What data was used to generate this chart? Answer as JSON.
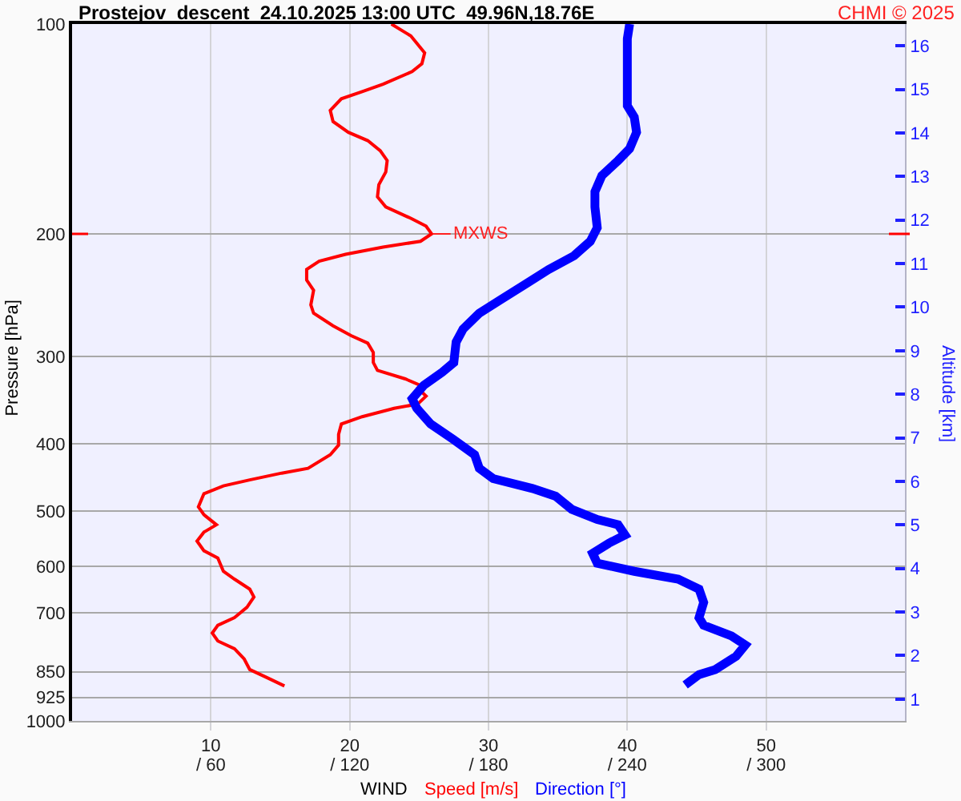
{
  "chart_data": {
    "type": "line",
    "title": "Prostejov  descent  24.10.2025 13:00 UTC  49.96N,18.76E",
    "xlabel": "WIND",
    "ylabel": "Pressure [hPa]",
    "y2label": "Altitude [km]",
    "annotations": [
      "CHMI © 2025",
      {
        "text": "MXWS",
        "x": 26,
        "y": 200
      }
    ],
    "series": [
      {
        "name": "Speed [m/s]",
        "color": "#ff0000",
        "x": [
          23.0,
          24.4,
          25.4,
          25.2,
          24.5,
          22.4,
          20.9,
          19.4,
          18.6,
          18.8,
          19.9,
          21.3,
          22.2,
          22.7,
          22.6,
          22.1,
          22.0,
          22.6,
          24.4,
          25.5,
          25.9,
          25.1,
          22.4,
          19.7,
          17.8,
          16.9,
          16.9,
          17.4,
          17.2,
          17.4,
          18.8,
          20.1,
          21.3,
          21.7,
          21.7,
          22.0,
          24.0,
          25.1,
          24.9,
          25.5,
          24.9,
          23.2,
          20.9,
          19.4,
          19.2,
          19.2,
          18.6,
          17.0,
          15.1,
          12.8,
          10.9,
          9.5,
          9.1,
          9.5,
          10.4,
          9.5,
          9.0,
          9.5,
          10.5,
          10.9,
          11.7,
          12.8,
          13.1,
          12.6,
          11.7,
          10.5,
          10.1,
          10.5,
          11.7,
          12.4,
          12.8,
          14.0,
          15.3
        ],
        "values": [
          100,
          104,
          110,
          114,
          117,
          122,
          125,
          128,
          133,
          138,
          143,
          147,
          152,
          157,
          163,
          170,
          177,
          183,
          190,
          195,
          200,
          205,
          209,
          214,
          219,
          225,
          233,
          241,
          253,
          260,
          271,
          280,
          287,
          296,
          306,
          314,
          323,
          330,
          333,
          342,
          351,
          356,
          366,
          375,
          388,
          402,
          415,
          434,
          441,
          451,
          460,
          472,
          493,
          506,
          523,
          536,
          552,
          570,
          584,
          610,
          626,
          647,
          664,
          687,
          711,
          729,
          748,
          768,
          788,
          815,
          844,
          866,
          891
        ]
      },
      {
        "name": "Direction [°]",
        "color": "#0000ff",
        "axis": "x2",
        "x": [
          241,
          240,
          240,
          240,
          240,
          243,
          244,
          241,
          236,
          229,
          226,
          226,
          227,
          224,
          217,
          206,
          197,
          185,
          176,
          169,
          166,
          165,
          160,
          152,
          147,
          149,
          155,
          165,
          174,
          176,
          182,
          199,
          209,
          216,
          227,
          236,
          239,
          232,
          225,
          227,
          243,
          262,
          271,
          273,
          271,
          273,
          285,
          291,
          287,
          278,
          271,
          265
        ],
        "values": [
          100,
          105,
          110,
          126,
          131,
          136,
          143,
          151,
          157,
          165,
          174,
          183,
          196,
          205,
          215,
          225,
          235,
          249,
          260,
          274,
          286,
          306,
          316,
          330,
          345,
          356,
          375,
          395,
          415,
          434,
          449,
          464,
          476,
          497,
          514,
          523,
          541,
          556,
          575,
          594,
          610,
          626,
          647,
          676,
          711,
          729,
          755,
          778,
          808,
          844,
          858,
          888
        ]
      }
    ],
    "xlim": [
      0,
      60
    ],
    "xticks": [
      10,
      20,
      30,
      40,
      50
    ],
    "x2lim": [
      0,
      360
    ],
    "x2ticks": [
      {
        "value": 60,
        "label": "/ 60"
      },
      {
        "value": 120,
        "label": "/ 120"
      },
      {
        "value": 180,
        "label": "/ 180"
      },
      {
        "value": 240,
        "label": "/ 240"
      },
      {
        "value": 300,
        "label": "/ 300"
      }
    ],
    "ylim": [
      1000,
      100
    ],
    "yticks": [
      100,
      200,
      300,
      400,
      500,
      600,
      700,
      850,
      925,
      1000
    ],
    "log": "y",
    "y2lim": [
      0.5,
      16.5
    ],
    "y2ticks": [
      1,
      2,
      3,
      4,
      5,
      6,
      7,
      8,
      9,
      10,
      11,
      12,
      13,
      14,
      15,
      16
    ],
    "ref_lines": [
      {
        "axis": "y",
        "value": 200,
        "color": "#ff0000"
      }
    ],
    "grid": true,
    "legend": "bottom"
  }
}
